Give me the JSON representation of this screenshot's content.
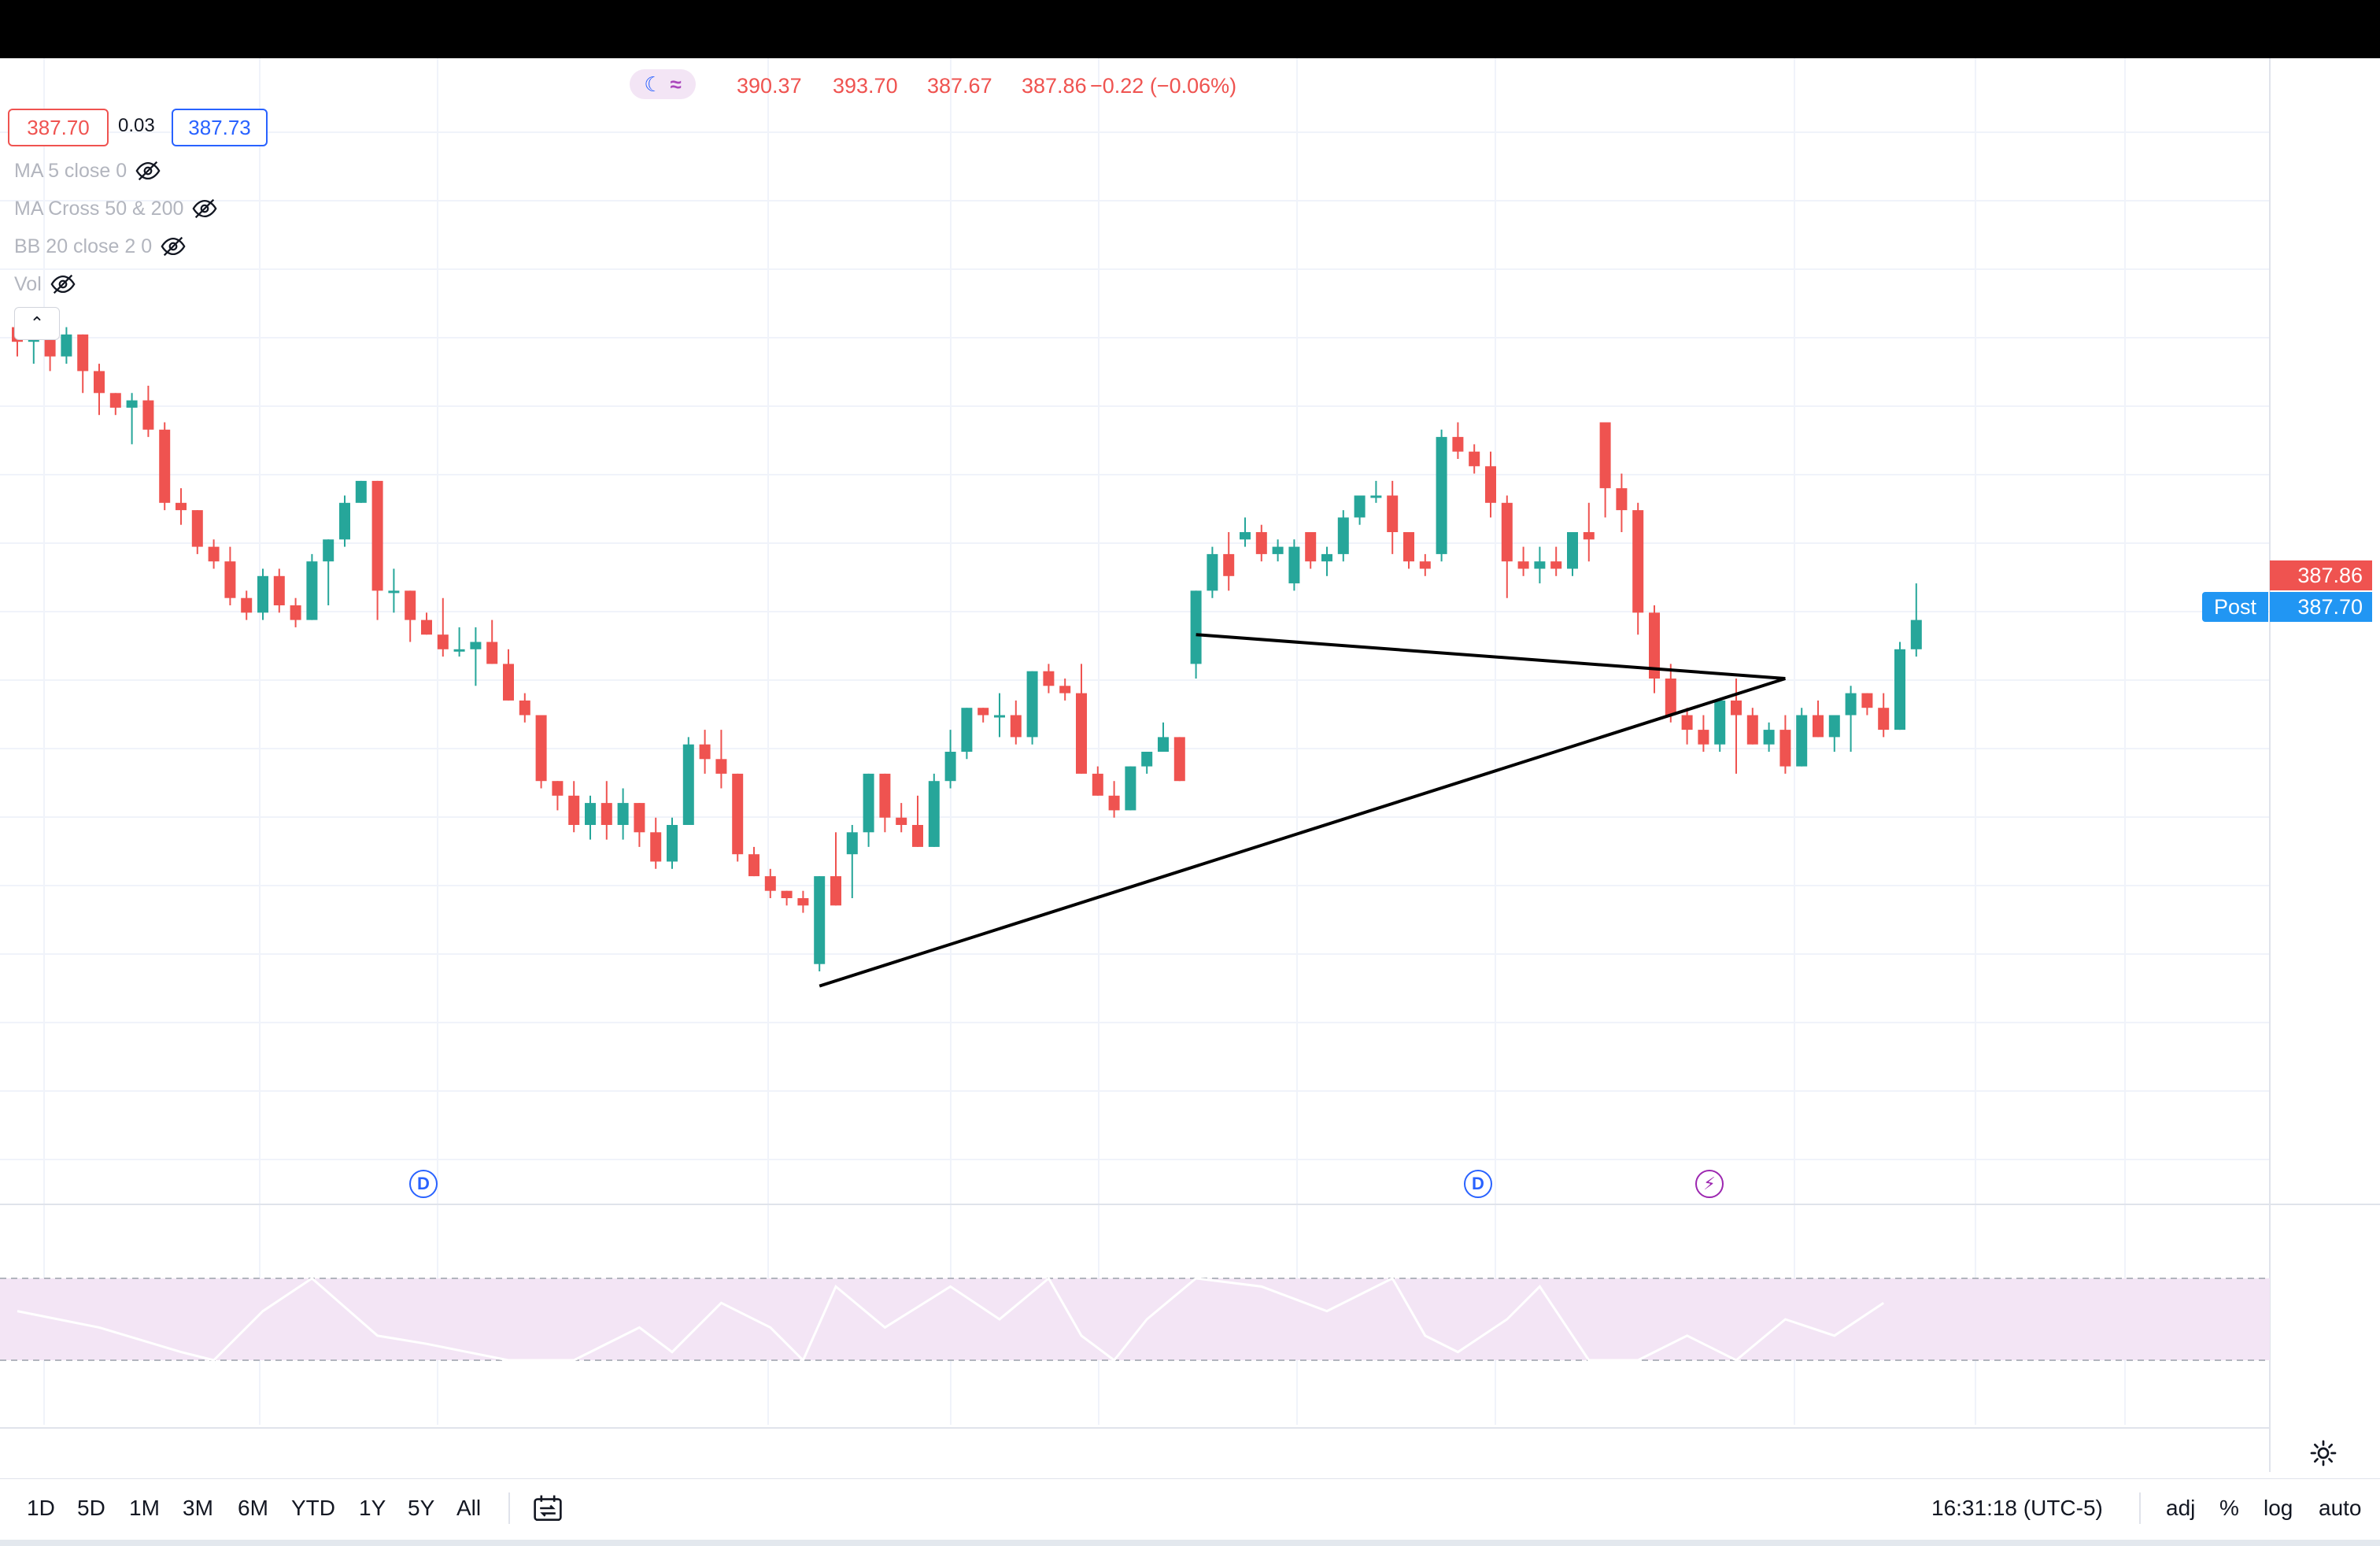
{
  "ohlc": {
    "open": "390.37",
    "high": "393.70",
    "low": "387.67",
    "close": "387.86",
    "change": "−0.22 (−0.06%)"
  },
  "quote": {
    "bid": "387.70",
    "spread": "0.03",
    "ask": "387.73"
  },
  "indicators": [
    {
      "label": "MA 5 close 0"
    },
    {
      "label": "MA Cross 50 & 200"
    },
    {
      "label": "BB 20 close 2 0"
    },
    {
      "label": "Vol"
    }
  ],
  "collapse_glyph": "⌃",
  "price_scale": {
    "last_price": "387.86",
    "post_label": "Post",
    "post_price": "387.70"
  },
  "events": [
    {
      "type": "dividend",
      "glyph": "D"
    },
    {
      "type": "dividend",
      "glyph": "D"
    },
    {
      "type": "earnings",
      "glyph": "⚡"
    }
  ],
  "toolbar": {
    "ranges": [
      "1D",
      "5D",
      "1M",
      "3M",
      "6M",
      "YTD",
      "1Y",
      "5Y",
      "All"
    ],
    "clock": "16:31:18 (UTC-5)",
    "options": [
      "adj",
      "%",
      "log",
      "auto"
    ]
  },
  "colors": {
    "up": "#26a69a",
    "down": "#ef5350",
    "trendline": "#000000",
    "rsi_band": "#f3e5f5",
    "rsi_line": "#ffffff"
  },
  "chart_data": {
    "type": "candlestick",
    "series": [
      {
        "o": 108,
        "h": 110,
        "l": 104,
        "c": 106
      },
      {
        "o": 106,
        "h": 109,
        "l": 103,
        "c": 107
      },
      {
        "o": 107,
        "h": 109,
        "l": 102,
        "c": 104
      },
      {
        "o": 104,
        "h": 108,
        "l": 103,
        "c": 107
      },
      {
        "o": 107,
        "h": 107,
        "l": 99,
        "c": 102
      },
      {
        "o": 102,
        "h": 103,
        "l": 96,
        "c": 99
      },
      {
        "o": 99,
        "h": 99,
        "l": 96,
        "c": 97
      },
      {
        "o": 97,
        "h": 99,
        "l": 92,
        "c": 98
      },
      {
        "o": 98,
        "h": 100,
        "l": 93,
        "c": 94
      },
      {
        "o": 94,
        "h": 95,
        "l": 83,
        "c": 84
      },
      {
        "o": 84,
        "h": 86,
        "l": 81,
        "c": 83
      },
      {
        "o": 83,
        "h": 83,
        "l": 77,
        "c": 78
      },
      {
        "o": 78,
        "h": 79,
        "l": 75,
        "c": 76
      },
      {
        "o": 76,
        "h": 78,
        "l": 70,
        "c": 71
      },
      {
        "o": 71,
        "h": 72,
        "l": 68,
        "c": 69
      },
      {
        "o": 69,
        "h": 75,
        "l": 68,
        "c": 74
      },
      {
        "o": 74,
        "h": 75,
        "l": 69,
        "c": 70
      },
      {
        "o": 70,
        "h": 71,
        "l": 67,
        "c": 68
      },
      {
        "o": 68,
        "h": 77,
        "l": 68,
        "c": 76
      },
      {
        "o": 76,
        "h": 79,
        "l": 70,
        "c": 79
      },
      {
        "o": 79,
        "h": 85,
        "l": 78,
        "c": 84
      },
      {
        "o": 84,
        "h": 87,
        "l": 84,
        "c": 87
      },
      {
        "o": 87,
        "h": 83,
        "l": 68,
        "c": 72
      },
      {
        "o": 72,
        "h": 75,
        "l": 69,
        "c": 72
      },
      {
        "o": 72,
        "h": 72,
        "l": 65,
        "c": 68
      },
      {
        "o": 68,
        "h": 69,
        "l": 66,
        "c": 66
      },
      {
        "o": 66,
        "h": 71,
        "l": 63,
        "c": 64
      },
      {
        "o": 64,
        "h": 67,
        "l": 63,
        "c": 64
      },
      {
        "o": 64,
        "h": 67,
        "l": 59,
        "c": 65
      },
      {
        "o": 65,
        "h": 68,
        "l": 64,
        "c": 62
      },
      {
        "o": 62,
        "h": 64,
        "l": 57,
        "c": 57
      },
      {
        "o": 57,
        "h": 58,
        "l": 54,
        "c": 55
      },
      {
        "o": 55,
        "h": 54,
        "l": 45,
        "c": 46
      },
      {
        "o": 46,
        "h": 45,
        "l": 42,
        "c": 44
      },
      {
        "o": 44,
        "h": 46,
        "l": 39,
        "c": 40
      },
      {
        "o": 40,
        "h": 44,
        "l": 38,
        "c": 43
      },
      {
        "o": 43,
        "h": 46,
        "l": 38,
        "c": 40
      },
      {
        "o": 40,
        "h": 45,
        "l": 38,
        "c": 43
      },
      {
        "o": 43,
        "h": 43,
        "l": 37,
        "c": 39
      },
      {
        "o": 39,
        "h": 41,
        "l": 34,
        "c": 35
      },
      {
        "o": 35,
        "h": 41,
        "l": 34,
        "c": 40
      },
      {
        "o": 40,
        "h": 52,
        "l": 42,
        "c": 51
      },
      {
        "o": 51,
        "h": 53,
        "l": 47,
        "c": 49
      },
      {
        "o": 49,
        "h": 53,
        "l": 45,
        "c": 47
      },
      {
        "o": 47,
        "h": 44,
        "l": 35,
        "c": 36
      },
      {
        "o": 36,
        "h": 37,
        "l": 33,
        "c": 33
      },
      {
        "o": 33,
        "h": 34,
        "l": 30,
        "c": 31
      },
      {
        "o": 31,
        "h": 31,
        "l": 29,
        "c": 30
      },
      {
        "o": 30,
        "h": 31,
        "l": 28,
        "c": 29
      },
      {
        "o": 21,
        "h": 33,
        "l": 20,
        "c": 33
      },
      {
        "o": 33,
        "h": 39,
        "l": 31,
        "c": 29
      },
      {
        "o": 36,
        "h": 40,
        "l": 30,
        "c": 39
      },
      {
        "o": 39,
        "h": 47,
        "l": 37,
        "c": 47
      },
      {
        "o": 47,
        "h": 42,
        "l": 39,
        "c": 41
      },
      {
        "o": 41,
        "h": 43,
        "l": 39,
        "c": 40
      },
      {
        "o": 40,
        "h": 44,
        "l": 37,
        "c": 37
      },
      {
        "o": 37,
        "h": 47,
        "l": 37,
        "c": 46
      },
      {
        "o": 46,
        "h": 53,
        "l": 45,
        "c": 50
      },
      {
        "o": 50,
        "h": 56,
        "l": 49,
        "c": 56
      },
      {
        "o": 56,
        "h": 56,
        "l": 54,
        "c": 55
      },
      {
        "o": 55,
        "h": 58,
        "l": 52,
        "c": 55
      },
      {
        "o": 55,
        "h": 57,
        "l": 51,
        "c": 52
      },
      {
        "o": 52,
        "h": 61,
        "l": 51,
        "c": 61
      },
      {
        "o": 61,
        "h": 62,
        "l": 58,
        "c": 59
      },
      {
        "o": 59,
        "h": 60,
        "l": 57,
        "c": 58
      },
      {
        "o": 58,
        "h": 62,
        "l": 54,
        "c": 47
      },
      {
        "o": 47,
        "h": 48,
        "l": 44,
        "c": 44
      },
      {
        "o": 44,
        "h": 46,
        "l": 41,
        "c": 42
      },
      {
        "o": 42,
        "h": 47,
        "l": 44,
        "c": 48
      },
      {
        "o": 48,
        "h": 50,
        "l": 47,
        "c": 50
      },
      {
        "o": 50,
        "h": 54,
        "l": 50,
        "c": 52
      },
      {
        "o": 52,
        "h": 52,
        "l": 46,
        "c": 46
      },
      {
        "o": 62,
        "h": 72,
        "l": 60,
        "c": 72
      },
      {
        "o": 72,
        "h": 78,
        "l": 71,
        "c": 77
      },
      {
        "o": 77,
        "h": 80,
        "l": 72,
        "c": 74
      },
      {
        "o": 79,
        "h": 82,
        "l": 78,
        "c": 80
      },
      {
        "o": 80,
        "h": 81,
        "l": 76,
        "c": 77
      },
      {
        "o": 77,
        "h": 79,
        "l": 76,
        "c": 78
      },
      {
        "o": 73,
        "h": 79,
        "l": 72,
        "c": 78
      },
      {
        "o": 80,
        "h": 80,
        "l": 75,
        "c": 76
      },
      {
        "o": 76,
        "h": 78,
        "l": 74,
        "c": 77
      },
      {
        "o": 77,
        "h": 83,
        "l": 76,
        "c": 82
      },
      {
        "o": 82,
        "h": 85,
        "l": 81,
        "c": 85
      },
      {
        "o": 85,
        "h": 87,
        "l": 84,
        "c": 85
      },
      {
        "o": 85,
        "h": 87,
        "l": 77,
        "c": 80
      },
      {
        "o": 80,
        "h": 79,
        "l": 75,
        "c": 76
      },
      {
        "o": 76,
        "h": 77,
        "l": 74,
        "c": 75
      },
      {
        "o": 77,
        "h": 94,
        "l": 76,
        "c": 93
      },
      {
        "o": 93,
        "h": 95,
        "l": 90,
        "c": 91
      },
      {
        "o": 91,
        "h": 92,
        "l": 88,
        "c": 89
      },
      {
        "o": 89,
        "h": 91,
        "l": 82,
        "c": 84
      },
      {
        "o": 84,
        "h": 85,
        "l": 71,
        "c": 76
      },
      {
        "o": 76,
        "h": 78,
        "l": 74,
        "c": 75
      },
      {
        "o": 75,
        "h": 78,
        "l": 73,
        "c": 76
      },
      {
        "o": 76,
        "h": 78,
        "l": 74,
        "c": 75
      },
      {
        "o": 75,
        "h": 79,
        "l": 74,
        "c": 80
      },
      {
        "o": 80,
        "h": 84,
        "l": 76,
        "c": 79
      },
      {
        "o": 95,
        "h": 95,
        "l": 82,
        "c": 86
      },
      {
        "o": 86,
        "h": 88,
        "l": 80,
        "c": 83
      },
      {
        "o": 83,
        "h": 84,
        "l": 66,
        "c": 69
      },
      {
        "o": 69,
        "h": 70,
        "l": 58,
        "c": 60
      },
      {
        "o": 60,
        "h": 62,
        "l": 54,
        "c": 55
      },
      {
        "o": 55,
        "h": 56,
        "l": 51,
        "c": 53
      },
      {
        "o": 53,
        "h": 55,
        "l": 50,
        "c": 51
      },
      {
        "o": 51,
        "h": 57,
        "l": 50,
        "c": 57
      },
      {
        "o": 57,
        "h": 60,
        "l": 47,
        "c": 55
      },
      {
        "o": 55,
        "h": 56,
        "l": 51,
        "c": 51
      },
      {
        "o": 51,
        "h": 54,
        "l": 50,
        "c": 53
      },
      {
        "o": 53,
        "h": 55,
        "l": 47,
        "c": 48
      },
      {
        "o": 48,
        "h": 56,
        "l": 48,
        "c": 55
      },
      {
        "o": 55,
        "h": 57,
        "l": 52,
        "c": 52
      },
      {
        "o": 52,
        "h": 55,
        "l": 50,
        "c": 55
      },
      {
        "o": 55,
        "h": 59,
        "l": 50,
        "c": 58
      },
      {
        "o": 58,
        "h": 58,
        "l": 55,
        "c": 56
      },
      {
        "o": 56,
        "h": 58,
        "l": 52,
        "c": 53
      },
      {
        "o": 53,
        "h": 65,
        "l": 54,
        "c": 64
      },
      {
        "o": 64,
        "h": 73,
        "l": 63,
        "c": 68
      }
    ],
    "trendlines": [
      {
        "from": [
          49,
          18
        ],
        "to": [
          108,
          60
        ]
      },
      {
        "from": [
          72,
          66
        ],
        "to": [
          108,
          60
        ]
      }
    ],
    "rsi": [
      {
        "t": 0,
        "v": 0.6
      },
      {
        "t": 5,
        "v": 0.4
      },
      {
        "t": 10,
        "v": 0.1
      },
      {
        "t": 12,
        "v": 0.0
      },
      {
        "t": 15,
        "v": 0.6
      },
      {
        "t": 18,
        "v": 1.0
      },
      {
        "t": 22,
        "v": 0.3
      },
      {
        "t": 25,
        "v": 0.2
      },
      {
        "t": 30,
        "v": 0.0
      },
      {
        "t": 34,
        "v": 0.0
      },
      {
        "t": 38,
        "v": 0.4
      },
      {
        "t": 40,
        "v": 0.1
      },
      {
        "t": 43,
        "v": 0.7
      },
      {
        "t": 46,
        "v": 0.4
      },
      {
        "t": 48,
        "v": 0.0
      },
      {
        "t": 50,
        "v": 0.9
      },
      {
        "t": 53,
        "v": 0.4
      },
      {
        "t": 57,
        "v": 0.9
      },
      {
        "t": 60,
        "v": 0.5
      },
      {
        "t": 63,
        "v": 1.0
      },
      {
        "t": 65,
        "v": 0.3
      },
      {
        "t": 67,
        "v": 0.0
      },
      {
        "t": 69,
        "v": 0.5
      },
      {
        "t": 72,
        "v": 1.0
      },
      {
        "t": 76,
        "v": 0.9
      },
      {
        "t": 80,
        "v": 0.6
      },
      {
        "t": 84,
        "v": 1.0
      },
      {
        "t": 86,
        "v": 0.3
      },
      {
        "t": 88,
        "v": 0.1
      },
      {
        "t": 91,
        "v": 0.5
      },
      {
        "t": 93,
        "v": 0.9
      },
      {
        "t": 96,
        "v": 0.0
      },
      {
        "t": 99,
        "v": 0.0
      },
      {
        "t": 102,
        "v": 0.3
      },
      {
        "t": 105,
        "v": 0.0
      },
      {
        "t": 108,
        "v": 0.5
      },
      {
        "t": 111,
        "v": 0.3
      },
      {
        "t": 114,
        "v": 0.7
      }
    ]
  }
}
